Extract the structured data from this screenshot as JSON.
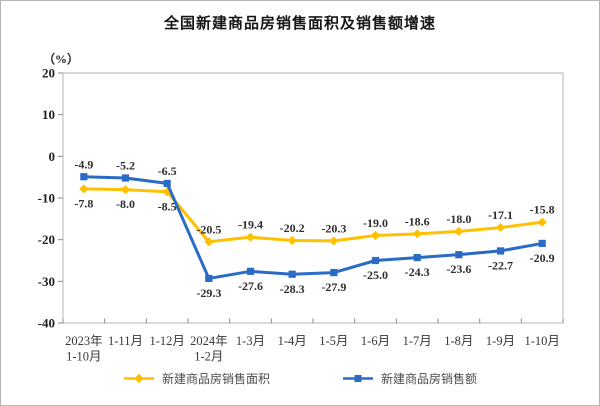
{
  "title": "全国新建商品房销售面积及销售额增速",
  "unit_label": "（%）",
  "chart_data": {
    "type": "line",
    "categories": [
      [
        "2023年",
        "1-10月"
      ],
      [
        "1-11月"
      ],
      [
        "1-12月"
      ],
      [
        "2024年",
        "1-2月"
      ],
      [
        "1-3月"
      ],
      [
        "1-4月"
      ],
      [
        "1-5月"
      ],
      [
        "1-6月"
      ],
      [
        "1-7月"
      ],
      [
        "1-8月"
      ],
      [
        "1-9月"
      ],
      [
        "1-10月"
      ]
    ],
    "series": [
      {
        "key": "sales-area",
        "name": "新建商品房销售面积",
        "color": "#FFC000",
        "marker": "diamond",
        "values": [
          -7.8,
          -8.0,
          -8.5,
          -20.5,
          -19.4,
          -20.2,
          -20.3,
          -19.0,
          -18.6,
          -18.0,
          -17.1,
          -15.8
        ],
        "label_side": [
          "below",
          "below",
          "below",
          "above",
          "above",
          "above",
          "above",
          "above",
          "above",
          "above",
          "above",
          "above"
        ]
      },
      {
        "key": "sales-amount",
        "name": "新建商品房销售额",
        "color": "#2A6BC5",
        "marker": "square",
        "values": [
          -4.9,
          -5.2,
          -6.5,
          -29.3,
          -27.6,
          -28.3,
          -27.9,
          -25.0,
          -24.3,
          -23.6,
          -22.7,
          -20.9
        ],
        "label_side": [
          "above",
          "above",
          "above",
          "below",
          "below",
          "below",
          "below",
          "below",
          "below",
          "below",
          "below",
          "below"
        ]
      }
    ],
    "ylabel": "（%）",
    "xlabel": "",
    "ylim": [
      -40,
      20
    ],
    "yticks": [
      20,
      10,
      0,
      -10,
      -20,
      -30,
      -40
    ],
    "grid": false,
    "legend_position": "bottom",
    "axis_color": "#b5b5b5",
    "tick_color": "#8a8a8a"
  }
}
